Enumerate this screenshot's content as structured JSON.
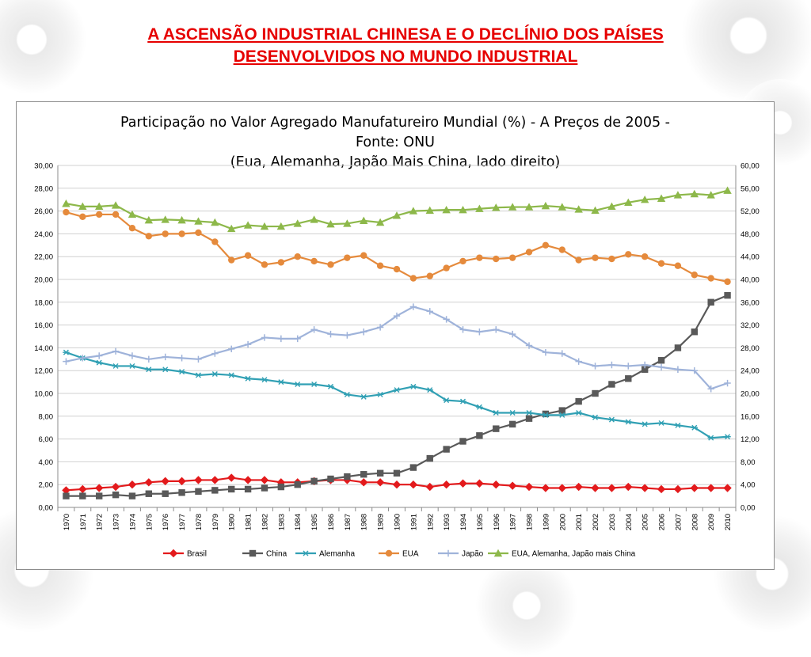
{
  "slide": {
    "title_line1": "A ASCENSÃO INDUSTRIAL CHINESA E O DECLÍNIO  DOS PAÍSES",
    "title_line2": "DESENVOLVIDOS NO MUNDO INDUSTRIAL"
  },
  "colors": {
    "title": "#e60000",
    "brasil": "#e31a1c",
    "china": "#595959",
    "alemanha": "#31a0b4",
    "eua": "#e58a3c",
    "japao": "#9fb3da",
    "combined": "#8db84a"
  },
  "chart_data": {
    "type": "line",
    "title_lines": [
      "Participação no Valor Agregado Manufatureiro Mundial (%) -  A Preços de 2005 -",
      "Fonte: ONU",
      "(Eua, Alemanha, Japão Mais China, lado direito)"
    ],
    "x": [
      "1970",
      "1971",
      "1972",
      "1973",
      "1974",
      "1975",
      "1976",
      "1977",
      "1978",
      "1979",
      "1980",
      "1981",
      "1982",
      "1983",
      "1984",
      "1985",
      "1986",
      "1987",
      "1988",
      "1989",
      "1990",
      "1991",
      "1992",
      "1993",
      "1994",
      "1995",
      "1996",
      "1997",
      "1998",
      "1999",
      "2000",
      "2001",
      "2002",
      "2003",
      "2004",
      "2005",
      "2006",
      "2007",
      "2008",
      "2009",
      "2010"
    ],
    "ylim_left": [
      0,
      30
    ],
    "ylim_right": [
      0,
      60
    ],
    "yticks_left": [
      "0,00",
      "2,00",
      "4,00",
      "6,00",
      "8,00",
      "10,00",
      "12,00",
      "14,00",
      "16,00",
      "18,00",
      "20,00",
      "22,00",
      "24,00",
      "26,00",
      "28,00",
      "30,00"
    ],
    "yticks_right": [
      "0,00",
      "4,00",
      "8,00",
      "12,00",
      "16,00",
      "20,00",
      "24,00",
      "28,00",
      "32,00",
      "36,00",
      "40,00",
      "44,00",
      "48,00",
      "52,00",
      "56,00",
      "60,00"
    ],
    "grid": true,
    "legend_position": "bottom",
    "series": [
      {
        "name": "Brasil",
        "axis": "left",
        "marker": "diamond",
        "color": "#e31a1c",
        "values": [
          1.5,
          1.6,
          1.7,
          1.8,
          2.0,
          2.2,
          2.3,
          2.3,
          2.4,
          2.4,
          2.6,
          2.4,
          2.4,
          2.2,
          2.2,
          2.3,
          2.4,
          2.4,
          2.2,
          2.2,
          2.0,
          2.0,
          1.8,
          2.0,
          2.1,
          2.1,
          2.0,
          1.9,
          1.8,
          1.7,
          1.7,
          1.8,
          1.7,
          1.7,
          1.8,
          1.7,
          1.6,
          1.6,
          1.7,
          1.7,
          1.7
        ]
      },
      {
        "name": "China",
        "axis": "left",
        "marker": "square",
        "color": "#595959",
        "values": [
          1.0,
          1.0,
          1.0,
          1.1,
          1.0,
          1.2,
          1.2,
          1.3,
          1.4,
          1.5,
          1.6,
          1.6,
          1.7,
          1.8,
          2.0,
          2.3,
          2.5,
          2.7,
          2.9,
          3.0,
          3.0,
          3.5,
          4.3,
          5.1,
          5.8,
          6.3,
          6.9,
          7.3,
          7.8,
          8.2,
          8.5,
          9.3,
          10.0,
          10.8,
          11.3,
          12.1,
          12.9,
          14.0,
          15.4,
          18.0,
          18.6
        ]
      },
      {
        "name": "Alemanha",
        "axis": "left",
        "marker": "asterisk",
        "color": "#31a0b4",
        "values": [
          13.6,
          13.1,
          12.7,
          12.4,
          12.4,
          12.1,
          12.1,
          11.9,
          11.6,
          11.7,
          11.6,
          11.3,
          11.2,
          11.0,
          10.8,
          10.8,
          10.6,
          9.9,
          9.7,
          9.9,
          10.3,
          10.6,
          10.3,
          9.4,
          9.3,
          8.8,
          8.3,
          8.3,
          8.3,
          8.1,
          8.1,
          8.3,
          7.9,
          7.7,
          7.5,
          7.3,
          7.4,
          7.2,
          7.0,
          6.1,
          6.2
        ]
      },
      {
        "name": "EUA",
        "axis": "left",
        "marker": "circle",
        "color": "#e58a3c",
        "values": [
          25.9,
          25.5,
          25.7,
          25.7,
          24.5,
          23.8,
          24.0,
          24.0,
          24.1,
          23.3,
          21.7,
          22.1,
          21.3,
          21.5,
          22.0,
          21.6,
          21.3,
          21.9,
          22.1,
          21.2,
          20.9,
          20.1,
          20.3,
          21.0,
          21.6,
          21.9,
          21.8,
          21.9,
          22.4,
          23.0,
          22.6,
          21.7,
          21.9,
          21.8,
          22.2,
          22.0,
          21.4,
          21.2,
          20.4,
          20.1,
          19.8
        ]
      },
      {
        "name": "Japão",
        "axis": "left",
        "marker": "plus",
        "color": "#9fb3da",
        "values": [
          12.8,
          13.1,
          13.3,
          13.7,
          13.3,
          13.0,
          13.2,
          13.1,
          13.0,
          13.5,
          13.9,
          14.3,
          14.9,
          14.8,
          14.8,
          15.6,
          15.2,
          15.1,
          15.4,
          15.8,
          16.8,
          17.6,
          17.2,
          16.5,
          15.6,
          15.4,
          15.6,
          15.2,
          14.2,
          13.6,
          13.5,
          12.8,
          12.4,
          12.5,
          12.4,
          12.5,
          12.3,
          12.1,
          12.0,
          10.4,
          10.9
        ]
      },
      {
        "name": "EUA, Alemanha, Japão mais China",
        "axis": "right",
        "marker": "triangle",
        "color": "#8db84a",
        "values": [
          53.3,
          52.8,
          52.8,
          53.0,
          51.4,
          50.4,
          50.5,
          50.4,
          50.2,
          50.0,
          48.9,
          49.5,
          49.3,
          49.3,
          49.8,
          50.5,
          49.7,
          49.8,
          50.3,
          50.0,
          51.2,
          52.0,
          52.1,
          52.2,
          52.2,
          52.4,
          52.6,
          52.7,
          52.7,
          52.9,
          52.7,
          52.3,
          52.1,
          52.8,
          53.5,
          54.0,
          54.2,
          54.8,
          55.0,
          54.8,
          55.6
        ]
      }
    ]
  }
}
